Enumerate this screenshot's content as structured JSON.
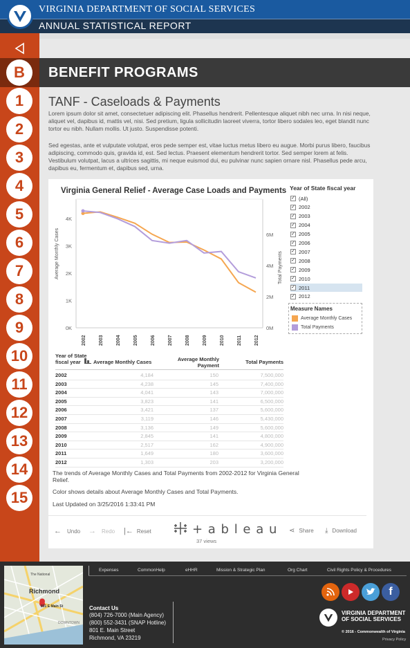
{
  "header": {
    "agency": "VIRGINIA DEPARTMENT OF SOCIAL SERVICES",
    "report": "ANNUAL STATISTICAL REPORT"
  },
  "nav": {
    "back_icon": "chevron-left-icon",
    "items": [
      "B",
      "1",
      "2",
      "3",
      "4",
      "5",
      "6",
      "7",
      "8",
      "9",
      "10",
      "11",
      "12",
      "13",
      "14",
      "15"
    ]
  },
  "section": {
    "title": "BENEFIT PROGRAMS"
  },
  "page": {
    "title": "TANF - Caseloads & Payments",
    "para1": "Lorem ipsum dolor sit amet, consectetuer adipiscing elit. Phasellus hendrerit. Pellentesque aliquet nibh nec urna. In nisi neque, aliquet vel, dapibus id, mattis vel, nisi. Sed pretium, ligula sollicitudin laoreet viverra, tortor libero sodales leo, eget blandit nunc tortor eu nibh. Nullam mollis. Ut justo. Suspendisse potenti.",
    "para2": "Sed egestas, ante et vulputate volutpat, eros pede semper est, vitae luctus metus libero eu augue. Morbi purus libero, faucibus adipiscing, commodo quis, gravida id, est. Sed lectus. Praesent elementum hendrerit tortor. Sed semper lorem at felis. Vestibulum volutpat, lacus a ultrices sagittis, mi neque euismod dui, eu pulvinar nunc sapien ornare nisl. Phasellus pede arcu, dapibus eu, fermentum et, dapibus sed, urna."
  },
  "viz": {
    "filter_title": "Year of State fiscal year",
    "filter_options": [
      "(All)",
      "2002",
      "2003",
      "2004",
      "2005",
      "2006",
      "2007",
      "2008",
      "2009",
      "2010",
      "2011",
      "2012"
    ],
    "filter_highlighted": "2011",
    "legend_title": "Measure Names",
    "legend_items": [
      {
        "label": "Average Monthly Cases",
        "color": "#f5a650"
      },
      {
        "label": "Total Payments",
        "color": "#b39ddb"
      }
    ],
    "table": {
      "headers": {
        "year": "Year of State fiscal year",
        "sort_icon": "sort-icon",
        "cases": "Average Monthly Cases",
        "payment": "Average Monthly Payment",
        "total": "Total Payments"
      },
      "rows": [
        [
          "2002",
          "4,184",
          "150",
          "7,500,000"
        ],
        [
          "2003",
          "4,238",
          "145",
          "7,400,000"
        ],
        [
          "2004",
          "4,041",
          "143",
          "7,000,000"
        ],
        [
          "2005",
          "3,823",
          "141",
          "6,500,000"
        ],
        [
          "2006",
          "3,421",
          "137",
          "5,600,000"
        ],
        [
          "2007",
          "3,119",
          "146",
          "5,430,000"
        ],
        [
          "2008",
          "3,136",
          "149",
          "5,600,000"
        ],
        [
          "2009",
          "2,845",
          "141",
          "4,800,000"
        ],
        [
          "2010",
          "2,517",
          "162",
          "4,900,000"
        ],
        [
          "2011",
          "1,649",
          "180",
          "3,600,000"
        ],
        [
          "2012",
          "1,303",
          "203",
          "3,200,000"
        ]
      ]
    },
    "desc1": "The trends of Average Monthly Cases and Total Payments from 2002-2012 for Virginia General Relief.",
    "desc2": "Color shows details about Average Monthly Cases and Total Payments.",
    "updated": "Last Updated on 3/25/2016 1:33:41 PM",
    "toolbar": {
      "undo": "Undo",
      "redo": "Redo",
      "reset": "Reset",
      "logo": "+ a b l e a u",
      "views": "37 views",
      "share": "Share",
      "download": "Download"
    }
  },
  "chart_data": {
    "type": "line",
    "title": "Virginia General Relief - Average Case Loads and Payments",
    "xlabel": "",
    "ylabel": "Average Monthly Cases",
    "y2label": "Total Payments",
    "categories": [
      "2002",
      "2003",
      "2004",
      "2005",
      "2006",
      "2007",
      "2008",
      "2009",
      "2010",
      "2011",
      "2012"
    ],
    "ylim": [
      0,
      4500
    ],
    "y2lim": [
      0,
      7900000
    ],
    "yticks": [
      "0K",
      "1K",
      "2K",
      "3K",
      "4K"
    ],
    "y2ticks": [
      "0M",
      "2M",
      "4M",
      "6M"
    ],
    "series": [
      {
        "name": "Average Monthly Cases",
        "axis": "left",
        "color": "#f5a650",
        "values": [
          4184,
          4238,
          4041,
          3823,
          3421,
          3119,
          3136,
          2845,
          2517,
          1649,
          1303
        ]
      },
      {
        "name": "Total Payments",
        "axis": "right",
        "color": "#b39ddb",
        "values": [
          7500000,
          7400000,
          7000000,
          6500000,
          5600000,
          5430000,
          5600000,
          4800000,
          4900000,
          3600000,
          3200000
        ]
      }
    ]
  },
  "footer": {
    "map": {
      "city": "Richmond",
      "pin_label": "801 E Main St",
      "landmark": "The National",
      "district": "DOWNTOWN"
    },
    "links": [
      "Expenses",
      "CommonHelp",
      "eHHR",
      "Mission & Strategic Plan",
      "Org Chart",
      "Civil Rights Policy & Procedures"
    ],
    "contact_title": "Contact Us",
    "contact_lines": [
      "(804) 726-7000 (Main Agency)",
      "(800) 552-3431 (SNAP Hotline)",
      "801 E. Main Street",
      "Richmond, VA 23219"
    ],
    "social": [
      {
        "name": "rss-icon",
        "color": "#e3640e"
      },
      {
        "name": "youtube-icon",
        "color": "#cc2a2a"
      },
      {
        "name": "twitter-icon",
        "color": "#4a9fd8"
      },
      {
        "name": "facebook-icon",
        "color": "#3b5ea0"
      }
    ],
    "agency_line1": "VIRGINIA DEPARTMENT",
    "agency_line2": "OF SOCIAL SERVICES",
    "copyright": "© 2016 - Commonwealth of Virginia",
    "privacy": "Privacy Policy"
  }
}
